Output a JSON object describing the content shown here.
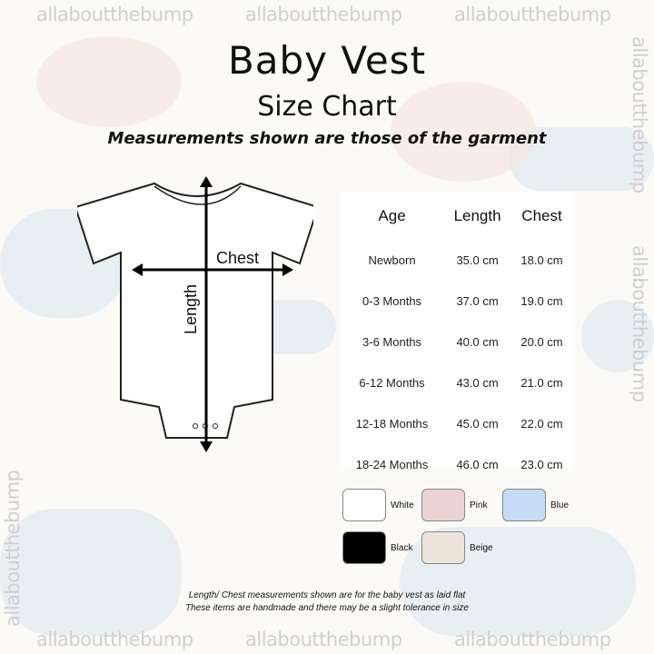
{
  "watermark": "allaboutthebump",
  "title": "Baby Vest",
  "subtitle": "Size Chart",
  "tagline": "Measurements shown are those of the garment",
  "diagram": {
    "chest_label": "Chest",
    "length_label": "Length"
  },
  "table": {
    "headers": [
      "Age",
      "Length",
      "Chest"
    ],
    "rows": [
      [
        "Newborn",
        "35.0 cm",
        "18.0 cm"
      ],
      [
        "0-3 Months",
        "37.0 cm",
        "19.0 cm"
      ],
      [
        "3-6 Months",
        "40.0 cm",
        "20.0 cm"
      ],
      [
        "6-12 Months",
        "43.0 cm",
        "21.0 cm"
      ],
      [
        "12-18 Months",
        "45.0 cm",
        "22.0 cm"
      ],
      [
        "18-24 Months",
        "46.0 cm",
        "23.0 cm"
      ]
    ]
  },
  "colours": [
    {
      "name": "White",
      "hex": "#ffffff"
    },
    {
      "name": "Pink",
      "hex": "#ead3d3"
    },
    {
      "name": "Blue",
      "hex": "#c5dcf4"
    },
    {
      "name": "Black",
      "hex": "#000000"
    },
    {
      "name": "Beige",
      "hex": "#ece4d9"
    }
  ],
  "notes": [
    "Length/ Chest measurements shown are for the baby vest as laid flat",
    "These items are handmade and there may be a slight tolerance in size"
  ]
}
